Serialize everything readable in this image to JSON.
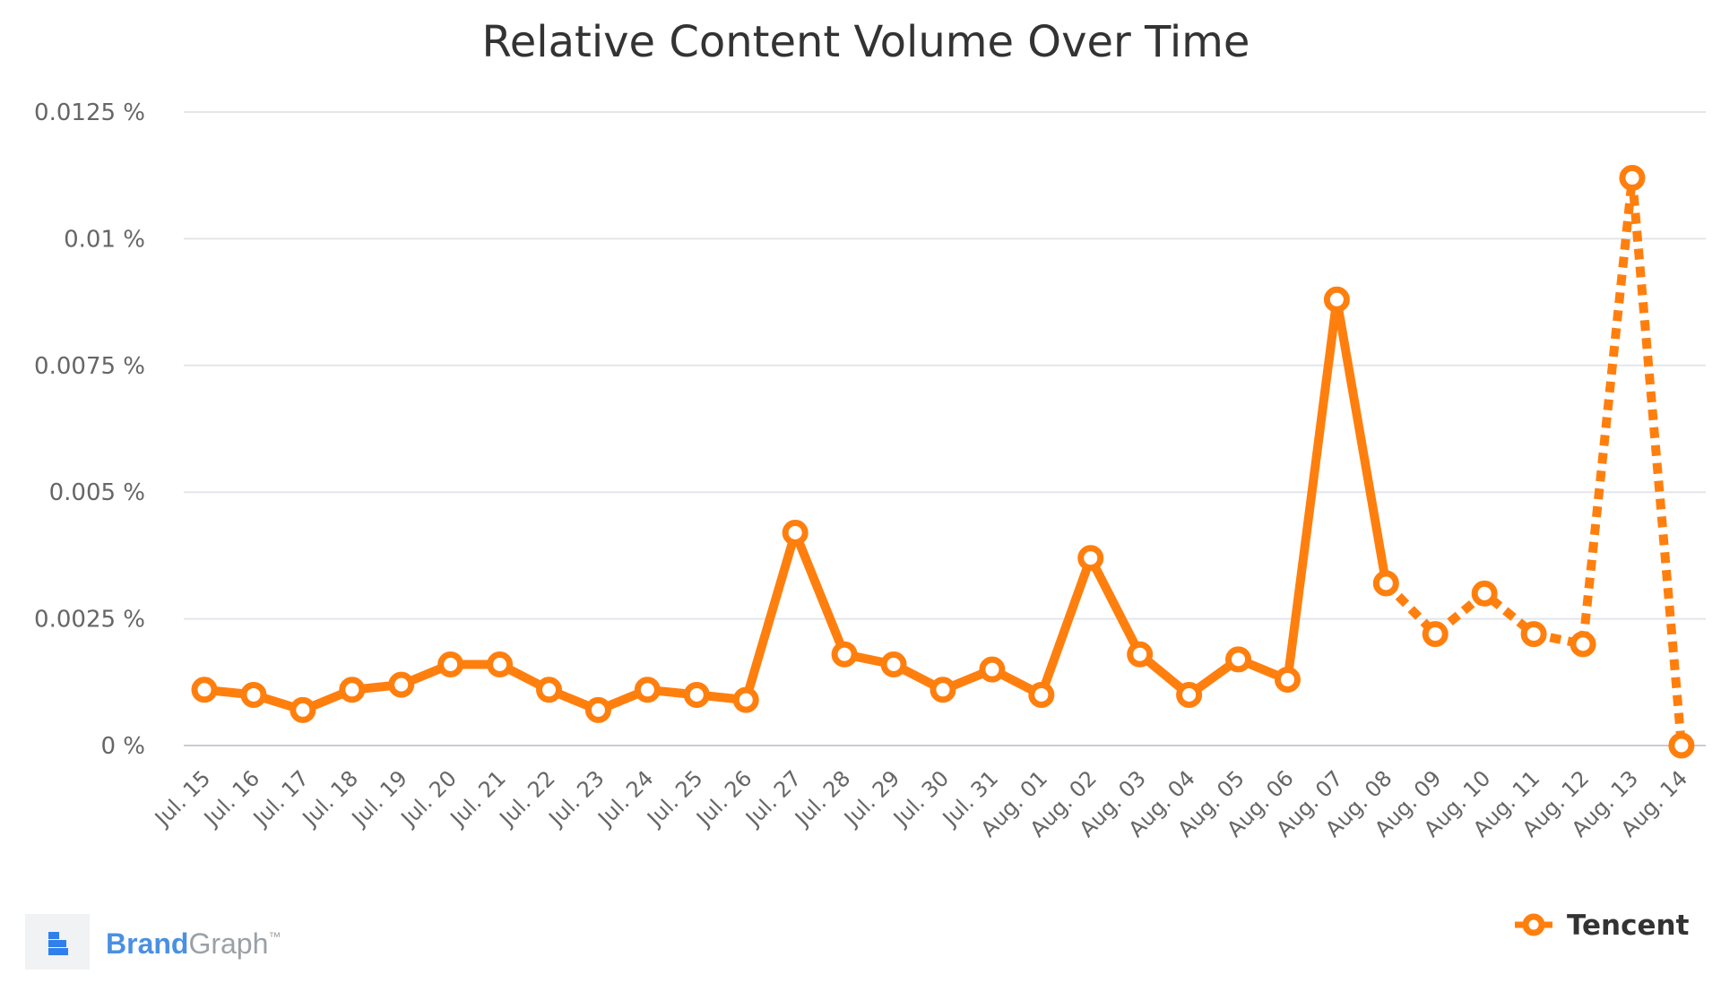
{
  "chart_data": {
    "type": "line",
    "title": "Relative Content Volume Over Time",
    "xlabel": "",
    "ylabel": "",
    "categories": [
      "Jul. 15",
      "Jul. 16",
      "Jul. 17",
      "Jul. 18",
      "Jul. 19",
      "Jul. 20",
      "Jul. 21",
      "Jul. 22",
      "Jul. 23",
      "Jul. 24",
      "Jul. 25",
      "Jul. 26",
      "Jul. 27",
      "Jul. 28",
      "Jul. 29",
      "Jul. 30",
      "Jul. 31",
      "Aug. 01",
      "Aug. 02",
      "Aug. 03",
      "Aug. 04",
      "Aug. 05",
      "Aug. 06",
      "Aug. 07",
      "Aug. 08",
      "Aug. 09",
      "Aug. 10",
      "Aug. 11",
      "Aug. 12",
      "Aug. 13",
      "Aug. 14"
    ],
    "y_ticks": [
      {
        "value": 0,
        "label": "0 %"
      },
      {
        "value": 0.0025,
        "label": "0.0025 %"
      },
      {
        "value": 0.005,
        "label": "0.005 %"
      },
      {
        "value": 0.0075,
        "label": "0.0075 %"
      },
      {
        "value": 0.01,
        "label": "0.01 %"
      },
      {
        "value": 0.0125,
        "label": "0.0125 %"
      }
    ],
    "ylim": [
      0,
      0.0125
    ],
    "grid": true,
    "legend_position": "bottom-right",
    "series": [
      {
        "name": "Tencent",
        "color": "#ff7f0e",
        "values": [
          0.0011,
          0.001,
          0.0007,
          0.0011,
          0.0012,
          0.0016,
          0.0016,
          0.0011,
          0.0007,
          0.0011,
          0.001,
          0.0009,
          0.0042,
          0.0018,
          0.0016,
          0.0011,
          0.0015,
          0.001,
          0.0037,
          0.0018,
          0.001,
          0.0017,
          0.0013,
          0.0088,
          0.0032,
          0.0022,
          0.003,
          0.0022,
          0.002,
          0.0112,
          0.0
        ],
        "solid_through_index": 24
      }
    ]
  },
  "branding": {
    "word_brand": "Brand",
    "word_graph": "Graph",
    "trademark": "™",
    "brand_color": "#4a90e2",
    "graph_color": "#9aa0a6"
  }
}
